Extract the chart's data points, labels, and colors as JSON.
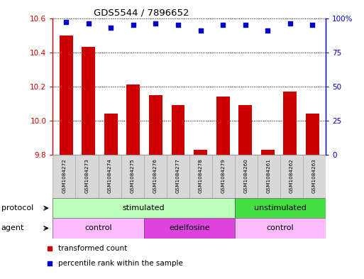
{
  "title": "GDS5544 / 7896652",
  "samples": [
    "GSM1084272",
    "GSM1084273",
    "GSM1084274",
    "GSM1084275",
    "GSM1084276",
    "GSM1084277",
    "GSM1084278",
    "GSM1084279",
    "GSM1084260",
    "GSM1084261",
    "GSM1084262",
    "GSM1084263"
  ],
  "transformed_counts": [
    10.5,
    10.43,
    10.04,
    10.21,
    10.15,
    10.09,
    9.83,
    10.14,
    10.09,
    9.83,
    10.17,
    10.04
  ],
  "percentile_ranks": [
    97,
    96,
    93,
    95,
    96,
    95,
    91,
    95,
    95,
    91,
    96,
    95
  ],
  "ylim_left": [
    9.8,
    10.6
  ],
  "ylim_right": [
    0,
    100
  ],
  "yticks_left": [
    9.8,
    10.0,
    10.2,
    10.4,
    10.6
  ],
  "yticks_right": [
    0,
    25,
    50,
    75,
    100
  ],
  "bar_color": "#cc0000",
  "dot_color": "#0000cc",
  "protocol_groups": [
    {
      "label": "stimulated",
      "start": 0,
      "end": 8,
      "color": "#bbffbb"
    },
    {
      "label": "unstimulated",
      "start": 8,
      "end": 12,
      "color": "#44dd44"
    }
  ],
  "agent_groups": [
    {
      "label": "control",
      "start": 0,
      "end": 4,
      "color": "#ffbbff"
    },
    {
      "label": "edelfosine",
      "start": 4,
      "end": 8,
      "color": "#dd44dd"
    },
    {
      "label": "control",
      "start": 8,
      "end": 12,
      "color": "#ffbbff"
    }
  ],
  "legend_items": [
    {
      "label": "transformed count",
      "color": "#cc0000"
    },
    {
      "label": "percentile rank within the sample",
      "color": "#0000cc"
    }
  ],
  "baseline": 9.8,
  "background_color": "#ffffff"
}
